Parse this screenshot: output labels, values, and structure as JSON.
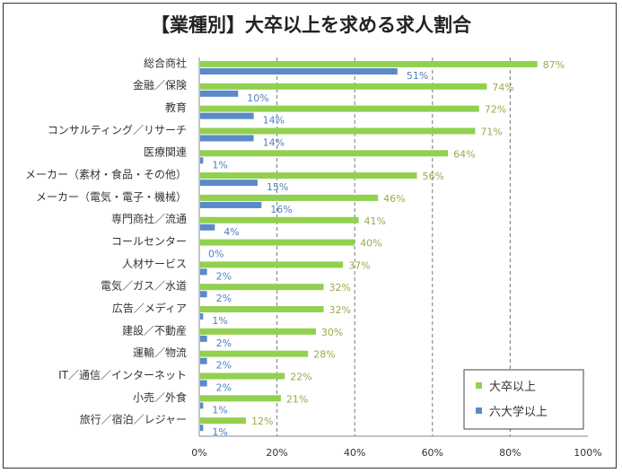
{
  "chart_data": {
    "type": "bar",
    "orientation": "horizontal",
    "title": "【業種別】大卒以上を求める求人割合",
    "categories": [
      "総合商社",
      "金融／保険",
      "教育",
      "コンサルティング／リサーチ",
      "医療関連",
      "メーカー（素材・食品・その他）",
      "メーカー（電気・電子・機械）",
      "専門商社／流通",
      "コールセンター",
      "人材サービス",
      "電気／ガス／水道",
      "広告／メディア",
      "建設／不動産",
      "運輸／物流",
      "IT／通信／インターネット",
      "小売／外食",
      "旅行／宿泊／レジャー"
    ],
    "series": [
      {
        "name": "大卒以上",
        "color": "#92d050",
        "label_color": "#9bab4a",
        "values": [
          87,
          74,
          72,
          71,
          64,
          56,
          46,
          41,
          40,
          37,
          32,
          32,
          30,
          28,
          22,
          21,
          12
        ]
      },
      {
        "name": "六大学以上",
        "color": "#5a8ac8",
        "label_color": "#4f7fbf",
        "values": [
          51,
          10,
          14,
          14,
          1,
          15,
          16,
          4,
          0,
          2,
          2,
          1,
          2,
          2,
          2,
          1,
          1
        ]
      }
    ],
    "xlim": [
      0,
      100
    ],
    "xticks": [
      "0%",
      "20%",
      "40%",
      "60%",
      "80%",
      "100%"
    ],
    "grid": "vertical dashed",
    "legend": "bottom-right",
    "xlabel": "",
    "ylabel": ""
  }
}
